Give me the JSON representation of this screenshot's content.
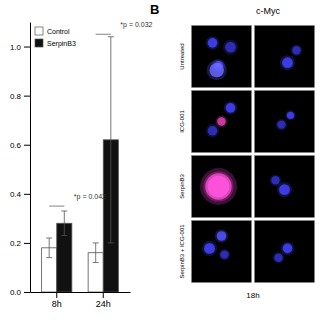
{
  "chart_data": [
    {
      "type": "bar",
      "categories": [
        "8h",
        "24h"
      ],
      "series": [
        {
          "name": "Control",
          "color": "#ffffff",
          "values": [
            0.18,
            0.16
          ],
          "errors": [
            0.04,
            0.04
          ]
        },
        {
          "name": "SerpinB3",
          "color": "#111111",
          "values": [
            0.28,
            0.62
          ],
          "errors": [
            0.05,
            0.42
          ]
        }
      ],
      "ylim": [
        0,
        1.1
      ],
      "yticks": [
        {
          "value": 0,
          "label": "0.0"
        },
        0.2,
        0.4,
        0.6,
        0.8,
        {
          "value": 1,
          "label": "1.0"
        }
      ],
      "legend": "upper left",
      "annotations": [
        {
          "text": "*p = 0.042",
          "category": "8h",
          "y": 0.38,
          "bracket_y": 0.35
        },
        {
          "text": "*p = 0.032",
          "category": "24h",
          "y": 1.08,
          "bracket_y": 1.05
        }
      ]
    },
    {
      "type": "image",
      "title": "c-Myc",
      "annotations": [
        {
          "text": "B"
        }
      ],
      "categories": [
        "Untreated",
        "ICG-001",
        "SerpinB3",
        "SerpinB3 + ICG-001"
      ],
      "x_label": "18h",
      "color": "#000000",
      "cells": [
        {
          "row": 0,
          "col": 0,
          "dots": [
            {
              "x": 0.45,
              "y": 0.35,
              "r": 0.08,
              "color": "#4444ff"
            },
            {
              "x": 0.45,
              "y": 0.35,
              "r": 0.04,
              "color": "#8888ff"
            },
            {
              "x": 0.65,
              "y": 0.65,
              "r": 0.09,
              "color": "#3333cc"
            },
            {
              "x": 0.35,
              "y": 0.72,
              "r": 0.08,
              "color": "#4444ff"
            },
            {
              "x": 0.42,
              "y": 0.28,
              "r": 0.12,
              "color": "#6666ff"
            }
          ]
        },
        {
          "row": 0,
          "col": 1,
          "dots": [
            {
              "x": 0.55,
              "y": 0.4,
              "r": 0.09,
              "color": "#4444ff"
            },
            {
              "x": 0.7,
              "y": 0.6,
              "r": 0.07,
              "color": "#3333cc"
            }
          ]
        },
        {
          "row": 1,
          "col": 0,
          "dots": [
            {
              "x": 0.35,
              "y": 0.35,
              "r": 0.08,
              "color": "#3333cc"
            },
            {
              "x": 0.5,
              "y": 0.5,
              "r": 0.07,
              "color": "#dd44aa"
            },
            {
              "x": 0.65,
              "y": 0.72,
              "r": 0.08,
              "color": "#4444ff"
            }
          ]
        },
        {
          "row": 1,
          "col": 1,
          "dots": [
            {
              "x": 0.45,
              "y": 0.45,
              "r": 0.07,
              "color": "#3333cc"
            },
            {
              "x": 0.6,
              "y": 0.6,
              "r": 0.06,
              "color": "#4444ff"
            }
          ]
        },
        {
          "row": 2,
          "col": 0,
          "dots": [
            {
              "x": 0.45,
              "y": 0.5,
              "r": 0.22,
              "color": "#ee44cc"
            },
            {
              "x": 0.45,
              "y": 0.5,
              "r": 0.18,
              "color": "#ff55dd"
            }
          ]
        },
        {
          "row": 2,
          "col": 1,
          "dots": [
            {
              "x": 0.5,
              "y": 0.45,
              "r": 0.09,
              "color": "#4444ff"
            },
            {
              "x": 0.35,
              "y": 0.6,
              "r": 0.07,
              "color": "#3333cc"
            }
          ]
        },
        {
          "row": 3,
          "col": 0,
          "dots": [
            {
              "x": 0.3,
              "y": 0.55,
              "r": 0.09,
              "color": "#4444ff"
            },
            {
              "x": 0.5,
              "y": 0.75,
              "r": 0.08,
              "color": "#5555ff"
            },
            {
              "x": 0.55,
              "y": 0.45,
              "r": 0.07,
              "color": "#3333cc"
            }
          ]
        },
        {
          "row": 3,
          "col": 1,
          "dots": [
            {
              "x": 0.55,
              "y": 0.55,
              "r": 0.08,
              "color": "#4444ff"
            },
            {
              "x": 0.4,
              "y": 0.4,
              "r": 0.07,
              "color": "#3333cc"
            }
          ]
        }
      ]
    }
  ]
}
